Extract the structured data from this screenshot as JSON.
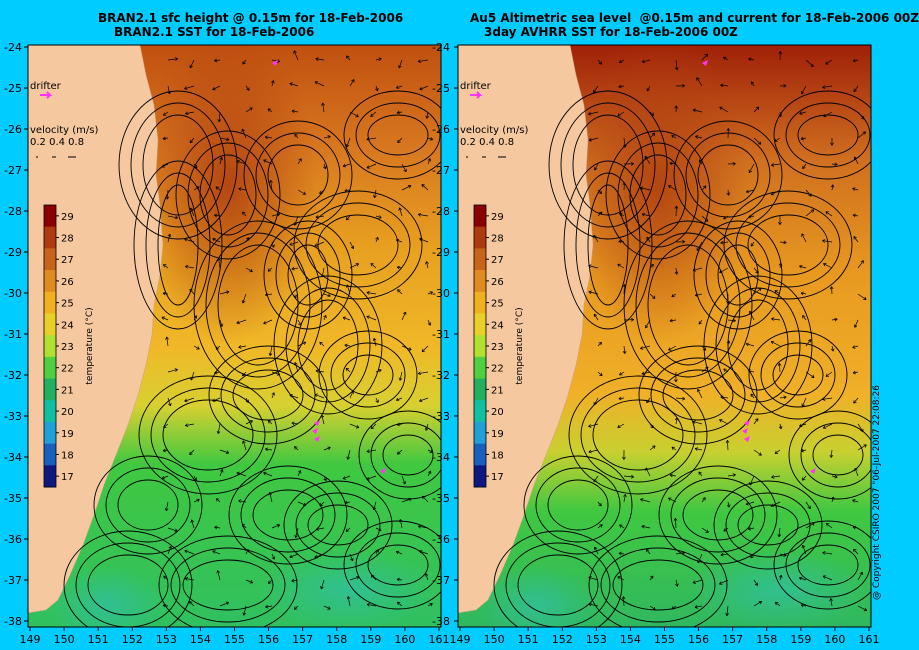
{
  "panels": [
    {
      "id": "left",
      "title_line1": "BRAN2.1 sfc height @ 0.15m for 18-Feb-2006",
      "title_line2": "BRAN2.1 SST for 18-Feb-2006",
      "legend_drifter": "drifter",
      "legend_velocity_title": "velocity (m/s)",
      "legend_velocity_values": "0.2 0.4 0.8",
      "colorbar_label": "temperature (°C)"
    },
    {
      "id": "right",
      "title_line1": "Au5 Altimetric sea level  @0.15m and current for 18-Feb-2006 00Z",
      "title_line2": "3day AVHRR SST for 18-Feb-2006 00Z",
      "legend_drifter": "drifter",
      "legend_velocity_title": "velocity (m/s)",
      "legend_velocity_values": "0.2 0.4 0.8",
      "colorbar_label": "temperature (°C)"
    }
  ],
  "axes": {
    "lat_ticks": [
      "-24",
      "-25",
      "-26",
      "-27",
      "-28",
      "-29",
      "-30",
      "-31",
      "-32",
      "-33",
      "-34",
      "-35",
      "-36",
      "-37",
      "-38"
    ],
    "lon_ticks": [
      "149",
      "150",
      "151",
      "152",
      "153",
      "154",
      "155",
      "156",
      "157",
      "158",
      "159",
      "160",
      "161"
    ]
  },
  "colorbar": {
    "ticks": [
      "29",
      "28",
      "27",
      "26",
      "25",
      "24",
      "23",
      "22",
      "21",
      "20",
      "19",
      "18",
      "17"
    ],
    "colors": [
      "#8b0000",
      "#b03a10",
      "#c8641a",
      "#e08a22",
      "#f0b020",
      "#e8d028",
      "#b0e030",
      "#50d040",
      "#20b060",
      "#10c0a0",
      "#20a0d8",
      "#1860c0",
      "#101880"
    ]
  },
  "colors": {
    "background": "#00ccff",
    "land": "#f5c8a0",
    "contour": "#000000",
    "drifter": "#ff33ff"
  },
  "copyright": "@ Copyright CSIRO 2007 \"06-Jul-2007 22:08:26"
}
